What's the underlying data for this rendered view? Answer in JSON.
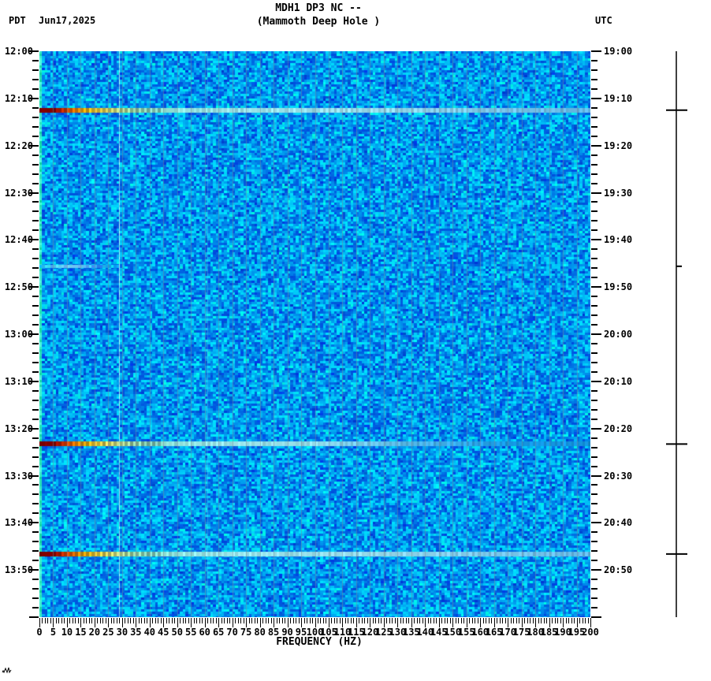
{
  "header": {
    "tz_left": "PDT",
    "date": "Jun17,2025",
    "title": "MDH1 DP3 NC --",
    "subtitle": "(Mammoth Deep Hole )",
    "tz_right": "UTC"
  },
  "chart_data": {
    "type": "heatmap",
    "subtype": "seismic-spectrogram",
    "title": "MDH1 DP3 NC --",
    "subtitle": "(Mammoth Deep Hole )",
    "xlabel": "FREQUENCY (HZ)",
    "x_range_hz": [
      0,
      200
    ],
    "x_major_tick_step_hz": 5,
    "x_minor_tick_step_hz": 1,
    "freq_tick_labels": [
      "0",
      "5",
      "10",
      "15",
      "20",
      "25",
      "30",
      "35",
      "40",
      "45",
      "50",
      "55",
      "60",
      "65",
      "70",
      "75",
      "80",
      "85",
      "90",
      "95",
      "100",
      "105",
      "110",
      "115",
      "120",
      "125",
      "130",
      "135",
      "140",
      "145",
      "150",
      "155",
      "160",
      "165",
      "170",
      "175",
      "180",
      "185",
      "190",
      "195",
      "200"
    ],
    "left_axis": {
      "timezone": "PDT",
      "start": "12:00",
      "end": "14:00",
      "major_tick_minutes": 10,
      "minor_tick_minutes": 2,
      "labels": [
        "12:00",
        "12:10",
        "12:20",
        "12:30",
        "12:40",
        "12:50",
        "13:00",
        "13:10",
        "13:20",
        "13:30",
        "13:40",
        "13:50"
      ]
    },
    "right_axis": {
      "timezone": "UTC",
      "start": "19:00",
      "end": "21:00",
      "labels": [
        "19:00",
        "19:10",
        "19:20",
        "19:30",
        "19:40",
        "19:50",
        "20:00",
        "20:10",
        "20:20",
        "20:30",
        "20:40",
        "20:50"
      ]
    },
    "palette": {
      "noise_low": "#0050e0",
      "noise_high": "#00c8ff",
      "dc_column": "#30ffcc",
      "gridline": "#78909c",
      "persistent_line": "#d2fff4",
      "event_low": "#8b0000",
      "event_mid": "#ffcc00",
      "event_high": "#aaeeff"
    },
    "gridlines_hz_step": 5,
    "persistent_narrowband_lines": [
      {
        "hz": 29,
        "strength": "strong"
      },
      {
        "hz": 61,
        "strength": "faint"
      }
    ],
    "events": [
      {
        "time_pdt": "12:12",
        "time_utc": "19:12",
        "minutes_after_start": 12.5,
        "intensity": "strong",
        "peak_hz_range": [
          0,
          30
        ],
        "extent_hz": 200,
        "amp_tick": "large"
      },
      {
        "time_pdt": "12:45",
        "time_utc": "19:45",
        "minutes_after_start": 45.6,
        "intensity": "weak",
        "peak_hz_range": [
          5,
          20
        ],
        "extent_hz": 25,
        "amp_tick": "small"
      },
      {
        "time_pdt": "13:23",
        "time_utc": "20:23",
        "minutes_after_start": 83.3,
        "intensity": "strong",
        "peak_hz_range": [
          0,
          30
        ],
        "extent_hz": 160,
        "amp_tick": "large"
      },
      {
        "time_pdt": "13:46",
        "time_utc": "20:46",
        "minutes_after_start": 106.6,
        "intensity": "strong",
        "peak_hz_range": [
          0,
          30
        ],
        "extent_hz": 200,
        "amp_tick": "large"
      }
    ]
  },
  "icons": {
    "watermark": "waveform-squiggle"
  }
}
